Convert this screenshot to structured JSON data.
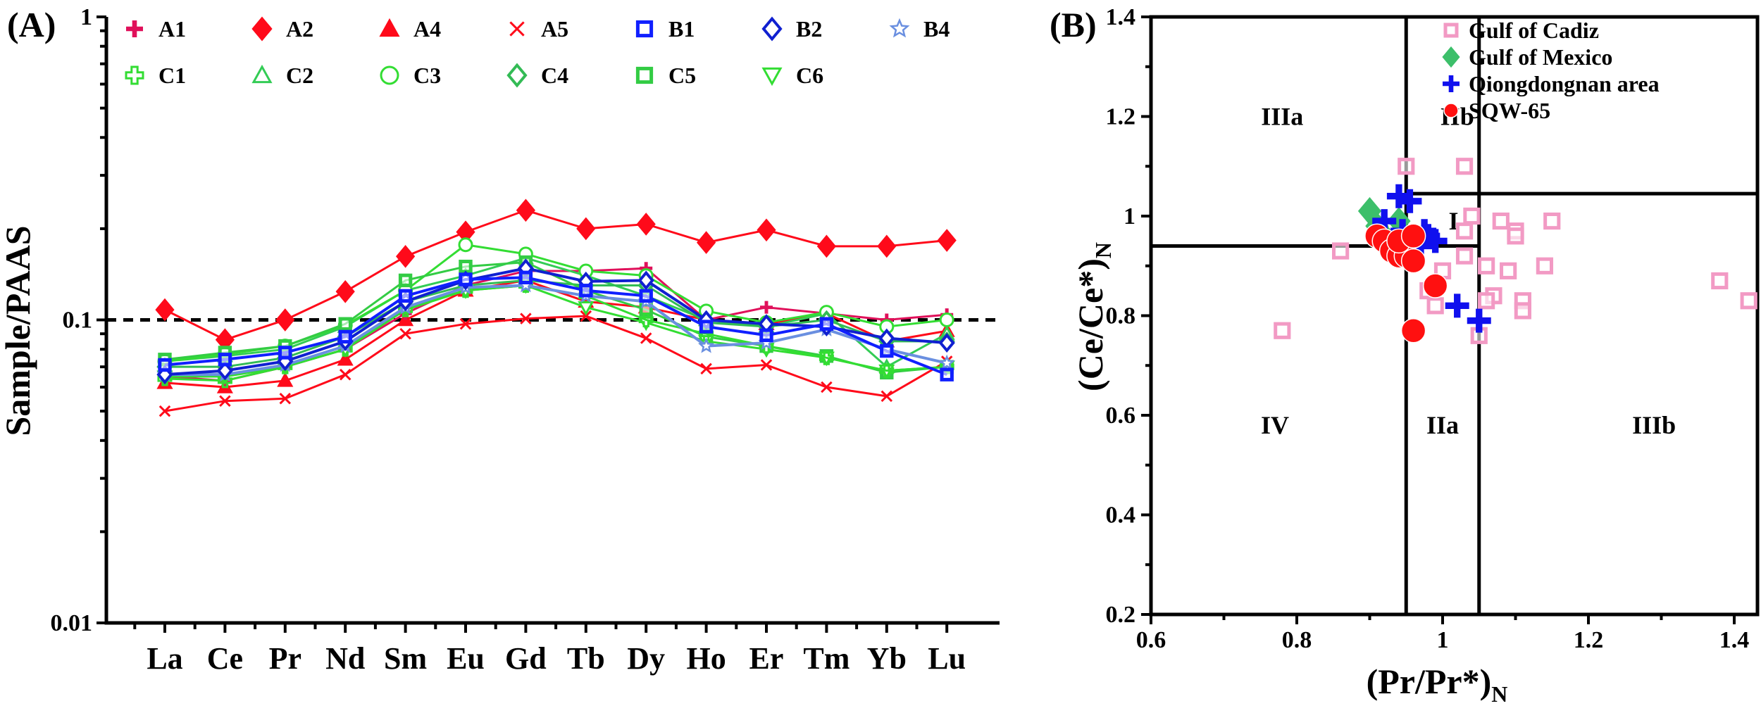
{
  "chart_data": [
    {
      "type": "line",
      "panel_label": "(A)",
      "title": "",
      "xlabel": "",
      "ylabel": "Sample/PAAS",
      "yscale": "log",
      "ylim": [
        0.01,
        1
      ],
      "yticks": [
        "1",
        "0.1",
        "0.01"
      ],
      "reference_line": 0.1,
      "categories": [
        "La",
        "Ce",
        "Pr",
        "Nd",
        "Sm",
        "Eu",
        "Gd",
        "Tb",
        "Dy",
        "Ho",
        "Er",
        "Tm",
        "Yb",
        "Lu"
      ],
      "legend_position": "top",
      "series": [
        {
          "name": "A1",
          "marker": "plus",
          "color": "#e0105a",
          "values": [
            0.065,
            0.063,
            0.07,
            0.08,
            0.105,
            0.13,
            0.145,
            0.145,
            0.148,
            0.1,
            0.11,
            0.105,
            0.1,
            0.104
          ]
        },
        {
          "name": "A2",
          "marker": "diamond-filled",
          "color": "#ff0a1a",
          "values": [
            0.108,
            0.086,
            0.1,
            0.124,
            0.162,
            0.195,
            0.23,
            0.2,
            0.207,
            0.18,
            0.198,
            0.175,
            0.175,
            0.183
          ]
        },
        {
          "name": "A4",
          "marker": "triangle-filled",
          "color": "#ff0a1a",
          "values": [
            0.062,
            0.06,
            0.063,
            0.074,
            0.1,
            0.125,
            0.135,
            0.115,
            0.11,
            0.1,
            0.097,
            0.105,
            0.085,
            0.092
          ]
        },
        {
          "name": "A5",
          "marker": "x",
          "color": "#ff0a1a",
          "values": [
            0.05,
            0.054,
            0.055,
            0.066,
            0.09,
            0.097,
            0.101,
            0.103,
            0.087,
            0.069,
            0.071,
            0.06,
            0.056,
            0.073
          ]
        },
        {
          "name": "B1",
          "marker": "square-open",
          "color": "#1020ff",
          "values": [
            0.071,
            0.074,
            0.078,
            0.088,
            0.12,
            0.136,
            0.138,
            0.125,
            0.12,
            0.095,
            0.089,
            0.097,
            0.079,
            0.066
          ]
        },
        {
          "name": "B2",
          "marker": "diamond-open",
          "color": "#1020d0",
          "values": [
            0.066,
            0.068,
            0.073,
            0.085,
            0.115,
            0.135,
            0.148,
            0.134,
            0.135,
            0.1,
            0.097,
            0.095,
            0.087,
            0.084
          ]
        },
        {
          "name": "B4",
          "marker": "star-open",
          "color": "#6a8fe0",
          "values": [
            0.066,
            0.066,
            0.071,
            0.082,
            0.11,
            0.128,
            0.13,
            0.12,
            0.115,
            0.082,
            0.084,
            0.093,
            0.08,
            0.072
          ]
        },
        {
          "name": "C1",
          "marker": "plus-open",
          "color": "#33dd33",
          "values": [
            0.064,
            0.063,
            0.07,
            0.08,
            0.108,
            0.125,
            0.13,
            0.12,
            0.1,
            0.09,
            0.082,
            0.075,
            0.068,
            0.07
          ]
        },
        {
          "name": "C2",
          "marker": "triangle-open",
          "color": "#33cc55",
          "values": [
            0.073,
            0.076,
            0.08,
            0.095,
            0.125,
            0.14,
            0.16,
            0.14,
            0.12,
            0.1,
            0.095,
            0.105,
            0.07,
            0.09
          ]
        },
        {
          "name": "C3",
          "marker": "circle-open",
          "color": "#33dd33",
          "values": [
            0.073,
            0.077,
            0.082,
            0.096,
            0.125,
            0.177,
            0.165,
            0.145,
            0.14,
            0.107,
            0.098,
            0.106,
            0.095,
            0.1
          ]
        },
        {
          "name": "C4",
          "marker": "diamond-open",
          "color": "#33bb55",
          "values": [
            0.07,
            0.07,
            0.075,
            0.088,
            0.115,
            0.13,
            0.135,
            0.13,
            0.13,
            0.098,
            0.095,
            0.1,
            0.085,
            0.085
          ]
        },
        {
          "name": "C5",
          "marker": "square-open",
          "color": "#33cc44",
          "values": [
            0.074,
            0.078,
            0.082,
            0.097,
            0.135,
            0.15,
            0.155,
            0.125,
            0.108,
            0.088,
            0.082,
            0.076,
            0.067,
            0.07
          ]
        },
        {
          "name": "C6",
          "marker": "triangle-down-open",
          "color": "#33dd33",
          "values": [
            0.065,
            0.065,
            0.07,
            0.08,
            0.11,
            0.125,
            0.13,
            0.11,
            0.098,
            0.085,
            0.08,
            0.075,
            0.068,
            0.07
          ]
        }
      ]
    },
    {
      "type": "scatter",
      "panel_label": "(B)",
      "xlabel": "(Pr/Pr*)",
      "xlabel_sub": "N",
      "ylabel": "(Ce/Ce*)",
      "ylabel_sub": "N",
      "xlim": [
        0.6,
        1.45
      ],
      "ylim": [
        0.2,
        1.4
      ],
      "xticks": [
        "0.6",
        "0.8",
        "1",
        "1.2",
        "1.4"
      ],
      "yticks": [
        "0.2",
        "0.4",
        "0.6",
        "0.8",
        "1",
        "1.2",
        "1.4"
      ],
      "boundaries": {
        "vertical": [
          0.95,
          1.05
        ],
        "horizontal_left": 0.94,
        "horizontal_right": 1.045
      },
      "regions": [
        {
          "label": "IIIa",
          "x": 0.78,
          "y": 1.2
        },
        {
          "label": "IIb",
          "x": 1.02,
          "y": 1.2
        },
        {
          "label": "I",
          "x": 1.015,
          "y": 0.99
        },
        {
          "label": "IV",
          "x": 0.77,
          "y": 0.58
        },
        {
          "label": "IIa",
          "x": 1.0,
          "y": 0.58
        },
        {
          "label": "IIIb",
          "x": 1.29,
          "y": 0.58
        }
      ],
      "legend_position": "top-right",
      "series": [
        {
          "name": "Gulf of Cadiz",
          "marker": "square-open",
          "color": "#f29ac4",
          "points": [
            [
              0.95,
              1.1
            ],
            [
              1.03,
              1.1
            ],
            [
              0.78,
              0.77
            ],
            [
              0.86,
              0.93
            ],
            [
              0.93,
              0.93
            ],
            [
              1.04,
              1.0
            ],
            [
              1.03,
              0.97
            ],
            [
              1.08,
              0.99
            ],
            [
              1.1,
              0.97
            ],
            [
              1.1,
              0.96
            ],
            [
              1.15,
              0.99
            ],
            [
              1.03,
              0.92
            ],
            [
              1.06,
              0.9
            ],
            [
              1.09,
              0.89
            ],
            [
              1.14,
              0.9
            ],
            [
              1.0,
              0.89
            ],
            [
              0.98,
              0.85
            ],
            [
              0.99,
              0.82
            ],
            [
              1.07,
              0.84
            ],
            [
              1.06,
              0.83
            ],
            [
              1.11,
              0.83
            ],
            [
              1.11,
              0.81
            ],
            [
              1.05,
              0.76
            ],
            [
              1.38,
              0.87
            ],
            [
              1.42,
              0.83
            ]
          ]
        },
        {
          "name": "Gulf of Mexico",
          "marker": "diamond-filled",
          "color": "#3cbf6a",
          "points": [
            [
              0.9,
              1.01
            ],
            [
              0.91,
              0.98
            ],
            [
              0.94,
              0.99
            ],
            [
              0.92,
              0.96
            ]
          ]
        },
        {
          "name": "Qiongdongnan area",
          "marker": "plus",
          "color": "#1010ee",
          "points": [
            [
              0.94,
              1.04
            ],
            [
              0.955,
              1.03
            ],
            [
              0.92,
              0.99
            ],
            [
              0.945,
              0.97
            ],
            [
              0.975,
              0.97
            ],
            [
              0.98,
              0.96
            ],
            [
              0.99,
              0.95
            ],
            [
              0.97,
              0.94
            ],
            [
              1.02,
              0.82
            ],
            [
              1.05,
              0.79
            ]
          ]
        },
        {
          "name": "SQW-65",
          "marker": "circle-filled",
          "color": "#ff1010",
          "points": [
            [
              0.91,
              0.96
            ],
            [
              0.92,
              0.95
            ],
            [
              0.93,
              0.93
            ],
            [
              0.94,
              0.92
            ],
            [
              0.95,
              0.92
            ],
            [
              0.96,
              0.91
            ],
            [
              0.94,
              0.95
            ],
            [
              0.96,
              0.96
            ],
            [
              0.99,
              0.86
            ],
            [
              0.96,
              0.77
            ]
          ]
        }
      ]
    }
  ]
}
